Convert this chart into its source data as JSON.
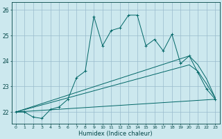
{
  "xlabel": "Humidex (Indice chaleur)",
  "bg_color": "#cce8ee",
  "grid_color": "#99bbcc",
  "line_color": "#006666",
  "xlim": [
    -0.5,
    23.5
  ],
  "ylim": [
    21.55,
    26.3
  ],
  "yticks": [
    22,
    23,
    24,
    25,
    26
  ],
  "xticks": [
    0,
    1,
    2,
    3,
    4,
    5,
    6,
    7,
    8,
    9,
    10,
    11,
    12,
    13,
    14,
    15,
    16,
    17,
    18,
    19,
    20,
    21,
    22,
    23
  ],
  "series1_x": [
    0,
    1,
    2,
    3,
    4,
    5,
    6,
    7,
    8,
    9,
    10,
    11,
    12,
    13,
    14,
    15,
    16,
    17,
    18,
    19,
    20,
    21,
    22,
    23
  ],
  "series1_y": [
    22.0,
    22.0,
    21.8,
    21.75,
    22.1,
    22.2,
    22.5,
    23.35,
    23.6,
    25.75,
    24.6,
    25.2,
    25.3,
    25.8,
    25.8,
    24.6,
    24.85,
    24.4,
    25.05,
    23.9,
    24.2,
    23.55,
    22.9,
    22.5
  ],
  "series2_x": [
    0,
    20,
    21,
    22,
    23
  ],
  "series2_y": [
    22.0,
    24.2,
    23.85,
    23.3,
    22.55
  ],
  "series3_x": [
    0,
    20,
    21,
    22,
    23
  ],
  "series3_y": [
    22.0,
    23.85,
    23.6,
    23.1,
    22.55
  ],
  "series4_x": [
    0,
    23
  ],
  "series4_y": [
    22.0,
    22.5
  ]
}
